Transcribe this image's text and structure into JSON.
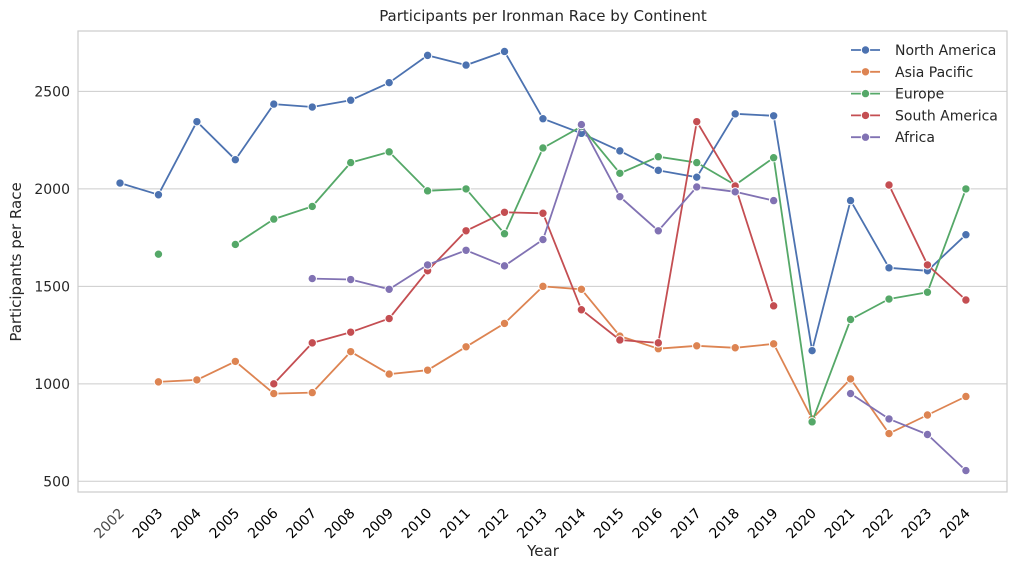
{
  "chart_data": {
    "type": "line",
    "title": "Participants per Ironman Race by Continent",
    "xlabel": "Year",
    "ylabel": "Participants per Race",
    "x": [
      "2002",
      "2003",
      "2004",
      "2005",
      "2006",
      "2007",
      "2008",
      "2009",
      "2010",
      "2011",
      "2012",
      "2013",
      "2014",
      "2015",
      "2016",
      "2017",
      "2018",
      "2019",
      "2020",
      "2021",
      "2022",
      "2023",
      "2024"
    ],
    "yticks": [
      500,
      1000,
      1500,
      2000,
      2500
    ],
    "ylim": [
      445,
      2810
    ],
    "grid": true,
    "legend_position": "top-right",
    "series": [
      {
        "name": "North America",
        "color": "#4c72b0",
        "values": [
          2030,
          1970,
          2345,
          2150,
          2435,
          2420,
          2455,
          2545,
          2685,
          2635,
          2705,
          2360,
          2285,
          2195,
          2095,
          2060,
          2385,
          2375,
          1170,
          1940,
          1595,
          1580,
          1765
        ]
      },
      {
        "name": "Asia Pacific",
        "color": "#dd8452",
        "values": [
          null,
          1010,
          1020,
          1115,
          950,
          955,
          1165,
          1050,
          1070,
          1190,
          1310,
          1500,
          1485,
          1245,
          1180,
          1195,
          1185,
          1205,
          820,
          1025,
          745,
          840,
          935
        ]
      },
      {
        "name": "Europe",
        "color": "#55a868",
        "values": [
          null,
          1665,
          null,
          1715,
          1845,
          1910,
          2135,
          2190,
          1990,
          2000,
          1770,
          2210,
          2320,
          2080,
          2165,
          2135,
          2020,
          2160,
          805,
          1330,
          1435,
          1470,
          2000
        ]
      },
      {
        "name": "South America",
        "color": "#c44e52",
        "values": [
          null,
          null,
          null,
          null,
          1000,
          1210,
          1265,
          1335,
          1580,
          1785,
          1880,
          1875,
          1380,
          1225,
          1210,
          2345,
          2015,
          1400,
          null,
          null,
          2020,
          1610,
          1430
        ]
      },
      {
        "name": "Africa",
        "color": "#8172b3",
        "values": [
          null,
          null,
          null,
          null,
          null,
          1540,
          1535,
          1485,
          1610,
          1685,
          1605,
          1740,
          2330,
          1960,
          1785,
          2010,
          1985,
          1940,
          null,
          950,
          820,
          740,
          555
        ]
      }
    ]
  }
}
